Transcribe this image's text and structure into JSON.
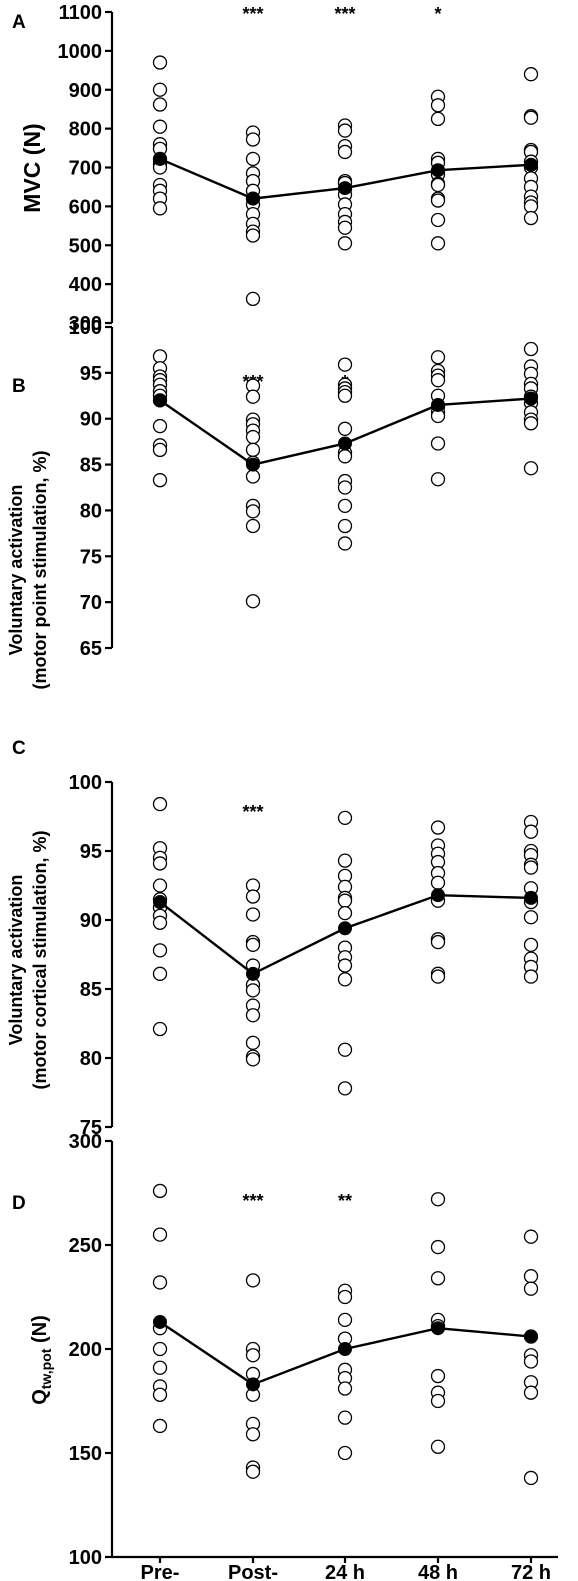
{
  "categories": [
    "Pre-",
    "Post-",
    "24 h",
    "48 h",
    "72 h"
  ],
  "chart_data": [
    {
      "type": "scatter",
      "panel": "A",
      "ylabel_lines": [
        "MVC (N)"
      ],
      "ylim": [
        300,
        1100
      ],
      "yticks": [
        300,
        400,
        500,
        600,
        700,
        800,
        900,
        1000,
        1100
      ],
      "significance": [
        "",
        "***",
        "***",
        "*",
        ""
      ],
      "means": [
        722,
        620,
        647,
        693,
        707
      ],
      "points": [
        [
          970,
          900,
          862,
          805,
          760,
          748,
          722,
          710,
          700,
          655,
          640,
          620,
          595
        ],
        [
          790,
          772,
          722,
          685,
          665,
          640,
          620,
          605,
          580,
          555,
          535,
          525,
          362
        ],
        [
          808,
          795,
          755,
          740,
          665,
          660,
          645,
          630,
          605,
          580,
          560,
          545,
          505
        ],
        [
          882,
          860,
          825,
          722,
          712,
          690,
          682,
          658,
          655,
          620,
          615,
          565,
          505
        ],
        [
          940,
          832,
          828,
          745,
          740,
          715,
          700,
          672,
          650,
          625,
          610,
          600,
          570
        ]
      ]
    },
    {
      "type": "scatter",
      "panel": "B",
      "ylabel_lines": [
        "Voluntary activation",
        "(motor point stimulation, %)"
      ],
      "ylim": [
        65,
        100
      ],
      "yticks": [
        65,
        70,
        75,
        80,
        85,
        90,
        95,
        100
      ],
      "significance": [
        "",
        "***",
        "*",
        "",
        ""
      ],
      "means": [
        92.0,
        85.0,
        87.3,
        91.5,
        92.2
      ],
      "points": [
        [
          96.8,
          95.5,
          94.6,
          94.2,
          93.7,
          93.0,
          92.5,
          92.0,
          89.2,
          87.1,
          86.6,
          83.3
        ],
        [
          93.6,
          92.4,
          89.9,
          89.4,
          88.7,
          88.0,
          86.6,
          85.2,
          83.7,
          80.5,
          79.9,
          78.3,
          70.1
        ],
        [
          95.9,
          93.7,
          93.3,
          92.9,
          92.5,
          88.9,
          86.3,
          85.9,
          83.2,
          82.5,
          80.5,
          78.3,
          76.4
        ],
        [
          96.7,
          95.2,
          94.7,
          94.2,
          92.5,
          91.3,
          90.7,
          90.3,
          87.3,
          83.4
        ],
        [
          97.6,
          95.7,
          94.9,
          93.8,
          93.3,
          92.4,
          91.7,
          90.7,
          89.9,
          89.5,
          84.6
        ]
      ]
    },
    {
      "type": "scatter",
      "panel": "C",
      "ylabel_lines": [
        "Voluntary activation",
        "(motor cortical stimulation, %)"
      ],
      "ylim": [
        75,
        100
      ],
      "yticks": [
        75,
        80,
        85,
        90,
        95,
        100
      ],
      "significance": [
        "",
        "***",
        "",
        "",
        ""
      ],
      "means": [
        91.3,
        86.1,
        89.4,
        91.8,
        91.6
      ],
      "points": [
        [
          98.4,
          95.2,
          94.5,
          94.1,
          92.5,
          91.5,
          90.9,
          90.3,
          89.8,
          87.8,
          86.1,
          82.1
        ],
        [
          92.5,
          91.7,
          90.4,
          88.4,
          88.2,
          86.7,
          85.3,
          84.9,
          83.8,
          83.1,
          81.1,
          80.1,
          79.9
        ],
        [
          97.4,
          94.3,
          93.2,
          92.4,
          91.6,
          91.4,
          90.5,
          88.0,
          87.3,
          86.7,
          85.7,
          80.6,
          77.8
        ],
        [
          96.7,
          95.4,
          94.8,
          94.2,
          93.4,
          92.7,
          91.4,
          88.6,
          88.4,
          86.1,
          85.9
        ],
        [
          97.1,
          96.4,
          95.0,
          94.7,
          94.0,
          93.8,
          92.3,
          91.3,
          90.2,
          88.2,
          87.2,
          86.6,
          85.9
        ]
      ]
    },
    {
      "type": "scatter",
      "panel": "D",
      "ylabel_main": "Q",
      "ylabel_sub": "tw,pot",
      "ylabel_suffix": " (N)",
      "ylim": [
        100,
        300
      ],
      "yticks": [
        100,
        150,
        200,
        250,
        300
      ],
      "significance": [
        "",
        "***",
        "**",
        "",
        ""
      ],
      "means": [
        213,
        183,
        200,
        210,
        206
      ],
      "points": [
        [
          276,
          255,
          232,
          210,
          200,
          191,
          182,
          178,
          163
        ],
        [
          233,
          200,
          197,
          188,
          178,
          164,
          159,
          143,
          141
        ],
        [
          228,
          225,
          214,
          205,
          190,
          186,
          181,
          167,
          150
        ],
        [
          272,
          249,
          234,
          214,
          211,
          187,
          179,
          175,
          153
        ],
        [
          254,
          235,
          229,
          206,
          197,
          194,
          184,
          179,
          138
        ]
      ]
    }
  ]
}
